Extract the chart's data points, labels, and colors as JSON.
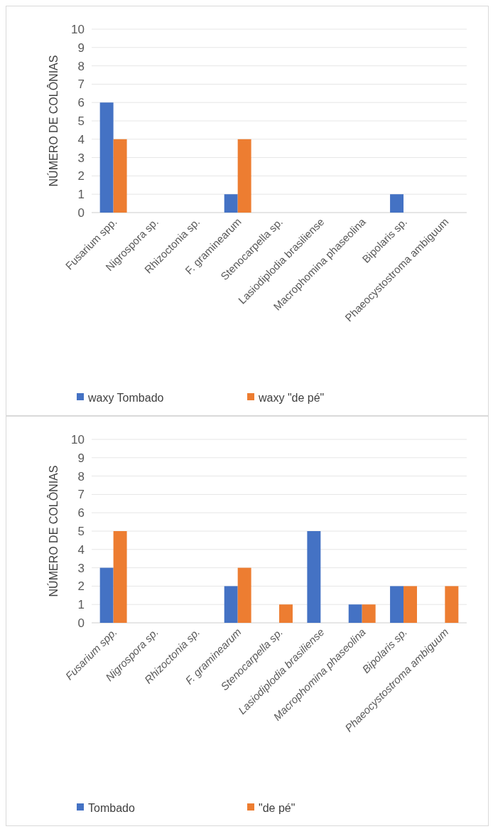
{
  "chart_data": [
    {
      "type": "bar",
      "ylabel": "NÚMERO DE COLÔNIAS",
      "categories": [
        "Fusarium spp.",
        "Nigrospora sp.",
        "Rhizoctonia sp.",
        "F. graminearum",
        "Stenocarpella sp.",
        "Lasiodiplodia brasiliense",
        "Macrophomina phaseolina",
        "Bipolaris sp.",
        "Phaeocystostroma ambiguum"
      ],
      "series": [
        {
          "name": "waxy Tombado",
          "color": "#4472c4",
          "values": [
            6,
            0,
            0,
            1,
            0,
            0,
            0,
            1,
            0
          ]
        },
        {
          "name": "waxy \"de pé\"",
          "color": "#ed7d31",
          "values": [
            4,
            0,
            0,
            4,
            0,
            0,
            0,
            0,
            0
          ]
        }
      ],
      "ylim": [
        0,
        10
      ],
      "yticks": [
        0,
        1,
        2,
        3,
        4,
        5,
        6,
        7,
        8,
        9,
        10
      ],
      "grid": "y",
      "legend": "bottom"
    },
    {
      "type": "bar",
      "ylabel": "NÚMERO DE COLÔNIAS",
      "categories": [
        "Fusarium spp.",
        "Nigrospora sp.",
        "Rhizoctonia sp.",
        "F. graminearum",
        "Stenocarpella sp.",
        "Lasiodiplodia brasiliense",
        "Macrophomina phaseolina",
        "Bipolaris sp.",
        "Phaeocystostroma ambiguum"
      ],
      "series": [
        {
          "name": "Tombado",
          "color": "#4472c4",
          "values": [
            3,
            0,
            0,
            2,
            0,
            5,
            1,
            2,
            0
          ]
        },
        {
          "name": "\"de pé\"",
          "color": "#ed7d31",
          "values": [
            5,
            0,
            0,
            3,
            1,
            0,
            1,
            2,
            2
          ]
        }
      ],
      "ylim": [
        0,
        10
      ],
      "yticks": [
        0,
        1,
        2,
        3,
        4,
        5,
        6,
        7,
        8,
        9,
        10
      ],
      "grid": "y",
      "legend": "bottom"
    }
  ]
}
